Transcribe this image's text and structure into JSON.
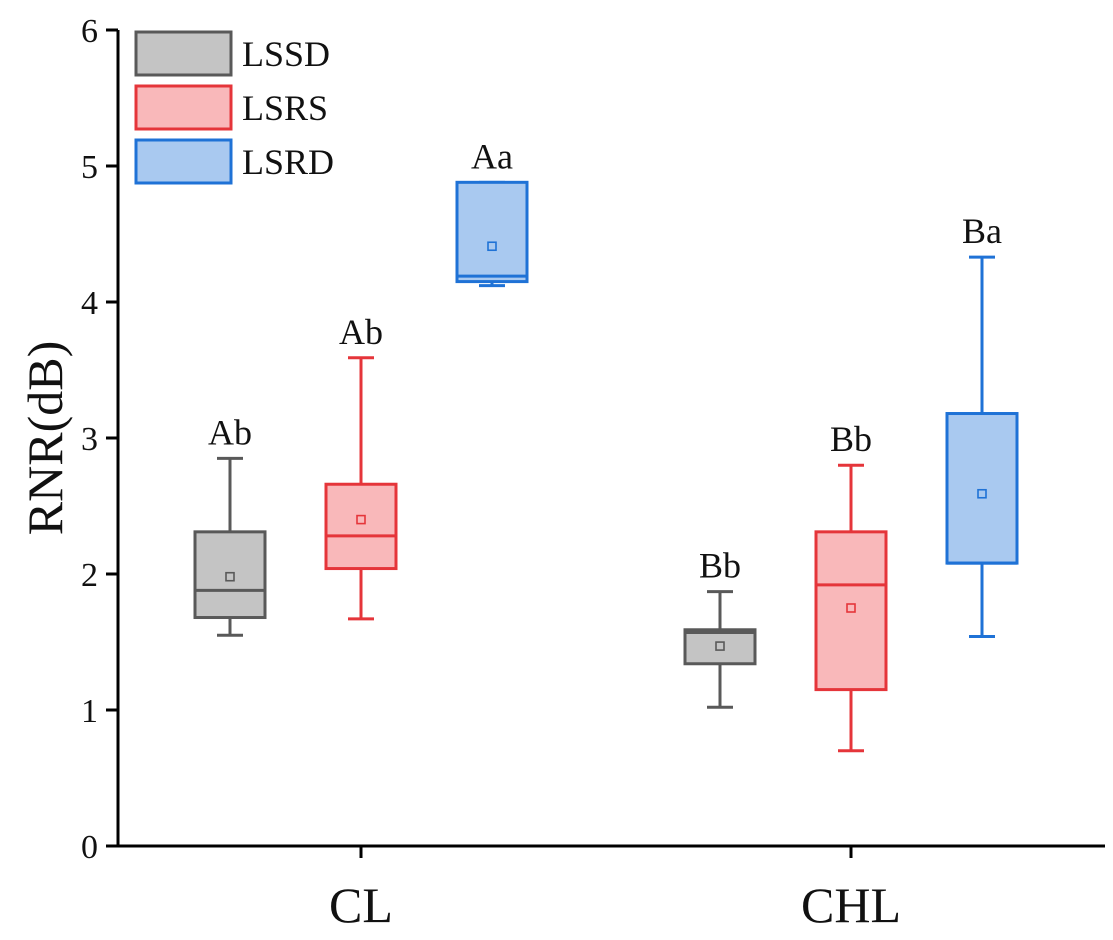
{
  "chart_data": {
    "type": "box",
    "ylabel": "RNR(dB)",
    "xlabel": "",
    "ylim": [
      0,
      6
    ],
    "yticks": [
      "0",
      "1",
      "2",
      "3",
      "4",
      "5",
      "6"
    ],
    "categories": [
      "CL",
      "CHL"
    ],
    "legend_position": "top-left",
    "series": [
      {
        "name": "LSSD",
        "stroke": "#595959",
        "fill": "#c4c4c4",
        "boxes": [
          {
            "category": "CL",
            "whisker_low": 1.55,
            "q1": 1.68,
            "median": 1.88,
            "q3": 2.31,
            "whisker_high": 2.85,
            "mean": 1.98,
            "label": "Ab"
          },
          {
            "category": "CHL",
            "whisker_low": 1.02,
            "q1": 1.34,
            "median": 1.57,
            "q3": 1.59,
            "whisker_high": 1.87,
            "mean": 1.47,
            "label": "Bb"
          }
        ]
      },
      {
        "name": "LSRS",
        "stroke": "#e5353a",
        "fill": "#f9b8ba",
        "boxes": [
          {
            "category": "CL",
            "whisker_low": 1.67,
            "q1": 2.04,
            "median": 2.28,
            "q3": 2.66,
            "whisker_high": 3.59,
            "mean": 2.4,
            "label": "Ab"
          },
          {
            "category": "CHL",
            "whisker_low": 0.7,
            "q1": 1.15,
            "median": 1.92,
            "q3": 2.31,
            "whisker_high": 2.8,
            "mean": 1.75,
            "label": "Bb"
          }
        ]
      },
      {
        "name": "LSRD",
        "stroke": "#1f72d6",
        "fill": "#a9c9f0",
        "boxes": [
          {
            "category": "CL",
            "whisker_low": 4.12,
            "q1": 4.15,
            "median": 4.19,
            "q3": 4.88,
            "whisker_high": 4.88,
            "mean": 4.41,
            "label": "Aa"
          },
          {
            "category": "CHL",
            "whisker_low": 1.54,
            "q1": 2.08,
            "median": 2.08,
            "q3": 3.18,
            "whisker_high": 4.33,
            "mean": 2.59,
            "label": "Ba"
          }
        ]
      }
    ]
  }
}
